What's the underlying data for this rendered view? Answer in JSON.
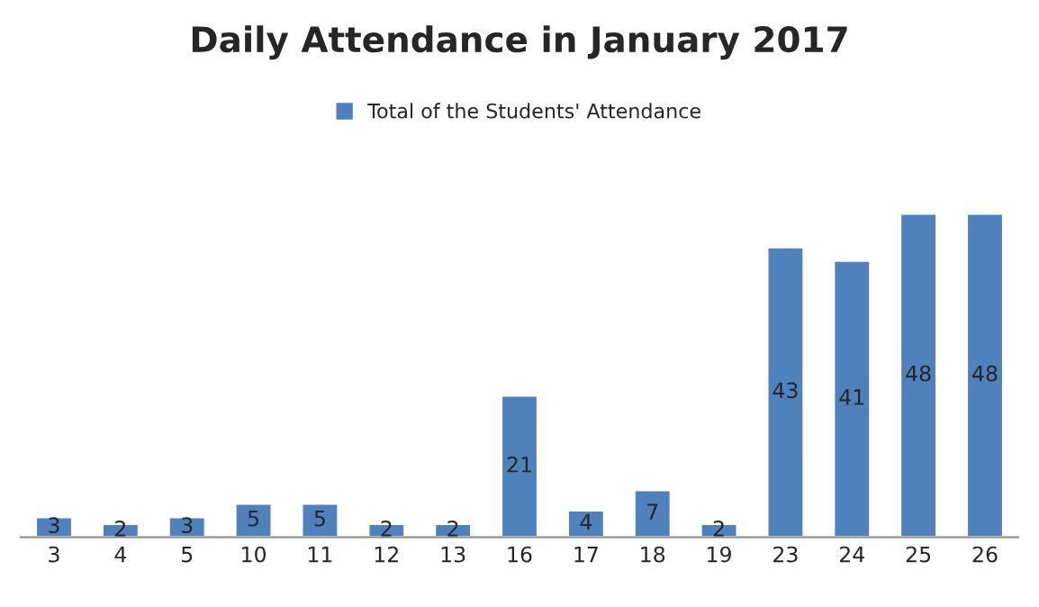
{
  "chart_data": {
    "type": "bar",
    "title": "Daily Attendance in January 2017",
    "categories": [
      "3",
      "4",
      "5",
      "10",
      "11",
      "12",
      "13",
      "16",
      "17",
      "18",
      "19",
      "23",
      "24",
      "25",
      "26"
    ],
    "series": [
      {
        "name": "Total of the Students' Attendance",
        "color": "#4f81bd",
        "values": [
          3,
          2,
          3,
          5,
          5,
          2,
          2,
          21,
          4,
          7,
          2,
          43,
          41,
          48,
          48
        ]
      }
    ],
    "data_labels": true,
    "legend": "top",
    "grid": false,
    "tick_labels": "x"
  }
}
